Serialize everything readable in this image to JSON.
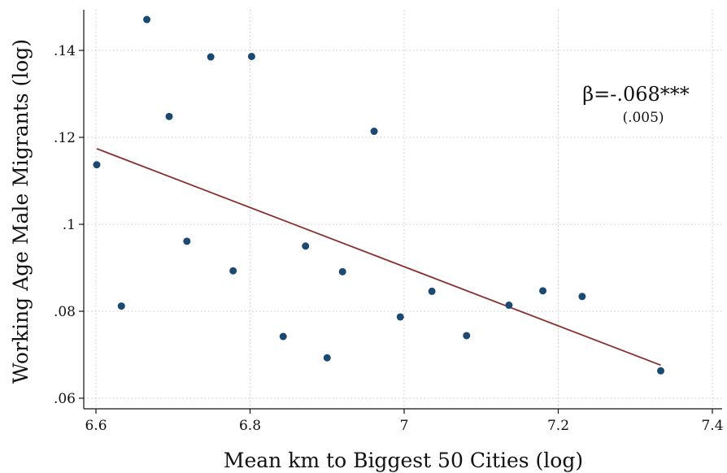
{
  "chart_data": {
    "type": "scatter",
    "xlabel": "Mean km to Biggest 50 Cities (log)",
    "ylabel": "Working Age Male Migrants (log)",
    "xlim": [
      6.6,
      7.4
    ],
    "ylim": [
      0.058,
      0.15
    ],
    "xticks": [
      6.6,
      6.8,
      7.0,
      7.2,
      7.4
    ],
    "xtick_labels": [
      "6.6",
      "6.8",
      "7",
      "7.2",
      "7.4"
    ],
    "yticks": [
      0.06,
      0.08,
      0.1,
      0.12,
      0.14
    ],
    "ytick_labels": [
      ".06",
      ".08",
      ".1",
      ".12",
      ".14"
    ],
    "grid": true,
    "points": [
      {
        "x": 6.601,
        "y": 0.1137
      },
      {
        "x": 6.633,
        "y": 0.0812
      },
      {
        "x": 6.666,
        "y": 0.1471
      },
      {
        "x": 6.695,
        "y": 0.1248
      },
      {
        "x": 6.718,
        "y": 0.0961
      },
      {
        "x": 6.749,
        "y": 0.1385
      },
      {
        "x": 6.778,
        "y": 0.0893
      },
      {
        "x": 6.802,
        "y": 0.1386
      },
      {
        "x": 6.843,
        "y": 0.0742
      },
      {
        "x": 6.872,
        "y": 0.095
      },
      {
        "x": 6.9,
        "y": 0.0693
      },
      {
        "x": 6.92,
        "y": 0.0891
      },
      {
        "x": 6.961,
        "y": 0.1214
      },
      {
        "x": 6.995,
        "y": 0.0787
      },
      {
        "x": 7.036,
        "y": 0.0846
      },
      {
        "x": 7.081,
        "y": 0.0744
      },
      {
        "x": 7.136,
        "y": 0.0814
      },
      {
        "x": 7.18,
        "y": 0.0847
      },
      {
        "x": 7.231,
        "y": 0.0834
      },
      {
        "x": 7.333,
        "y": 0.0663
      }
    ],
    "fit_line": {
      "x": [
        6.601,
        7.333
      ],
      "y": [
        0.1174,
        0.0676
      ]
    },
    "annotation": {
      "main": "β=-.068***",
      "sub": "(.005)"
    },
    "colors": {
      "points": "#1a4a72",
      "fit_line": "#8b2e2e",
      "grid": "#c8c8c8",
      "axis": "#111111"
    }
  }
}
